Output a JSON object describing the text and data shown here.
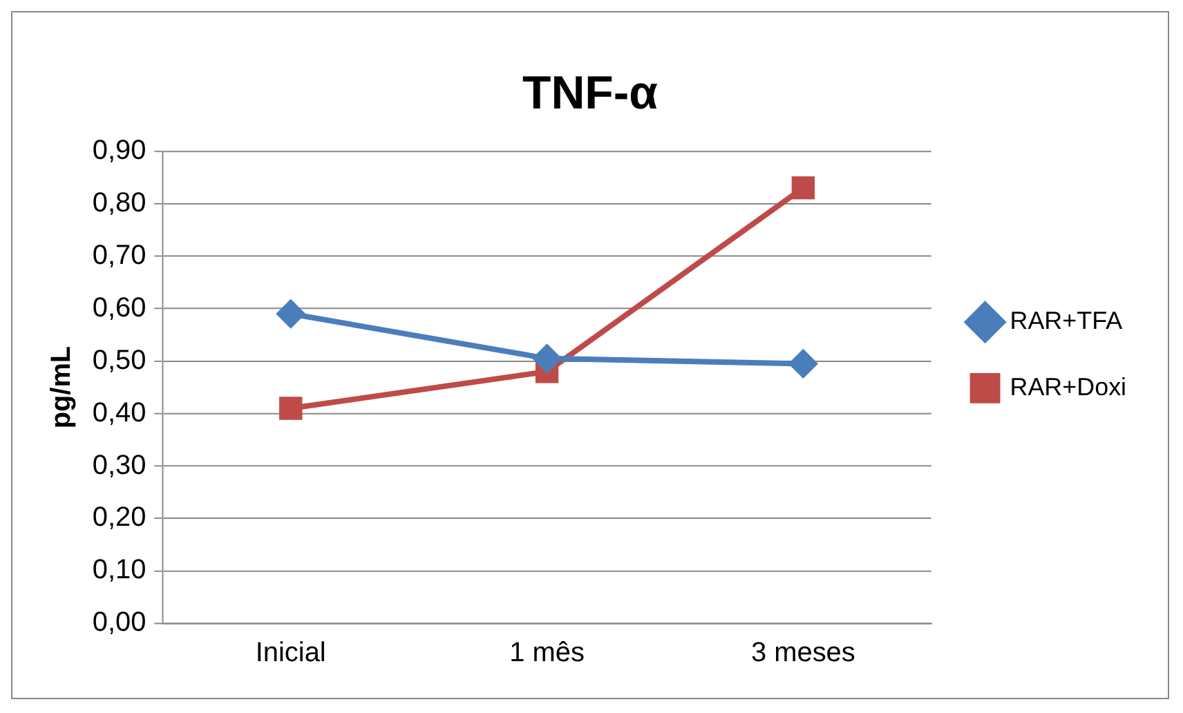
{
  "chart_data": {
    "type": "line",
    "title": "TNF-α",
    "ylabel": "pg/mL",
    "categories": [
      "Inicial",
      "1 mês",
      "3 meses"
    ],
    "series": [
      {
        "name": "RAR+TFA",
        "color": "#4a7ebb",
        "values": [
          0.59,
          0.505,
          0.495
        ]
      },
      {
        "name": "RAR+Doxi",
        "color": "#be4b48",
        "values": [
          0.41,
          0.48,
          0.83
        ],
        "marker": "square"
      }
    ],
    "ylim": [
      0,
      0.9
    ],
    "yticks": [
      {
        "value": 0,
        "label": "0,00"
      },
      {
        "value": 0.1,
        "label": "0,10"
      },
      {
        "value": 0.2,
        "label": "0,20"
      },
      {
        "value": 0.3,
        "label": "0,30"
      },
      {
        "value": 0.4,
        "label": "0,40"
      },
      {
        "value": 0.5,
        "label": "0,50"
      },
      {
        "value": 0.6,
        "label": "0,60"
      },
      {
        "value": 0.7,
        "label": "0,70"
      },
      {
        "value": 0.8,
        "label": "0,80"
      },
      {
        "value": 0.9,
        "label": "0,90"
      }
    ],
    "grid": "y",
    "legend": "right",
    "marker": "diamond",
    "line_style": "solid"
  }
}
